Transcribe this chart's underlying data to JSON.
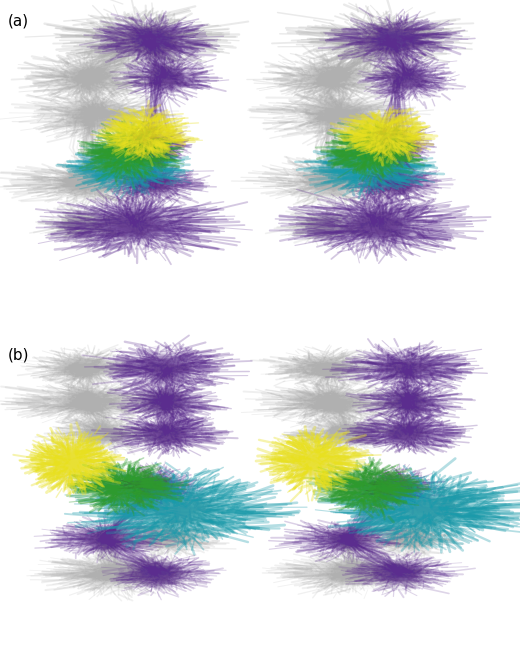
{
  "figure_width": 5.2,
  "figure_height": 6.66,
  "dpi": 100,
  "background_color": "#ffffff",
  "label_a": "(a)",
  "label_b": "(b)",
  "label_fontsize": 11,
  "colors": {
    "purple": "#5b2d8e",
    "gray": "#b0b0b0",
    "light_gray": "#cccccc",
    "yellow": "#e8e020",
    "green": "#2e9a2e",
    "teal": "#1a9aaa"
  },
  "seed": 42,
  "n_structs": 50
}
